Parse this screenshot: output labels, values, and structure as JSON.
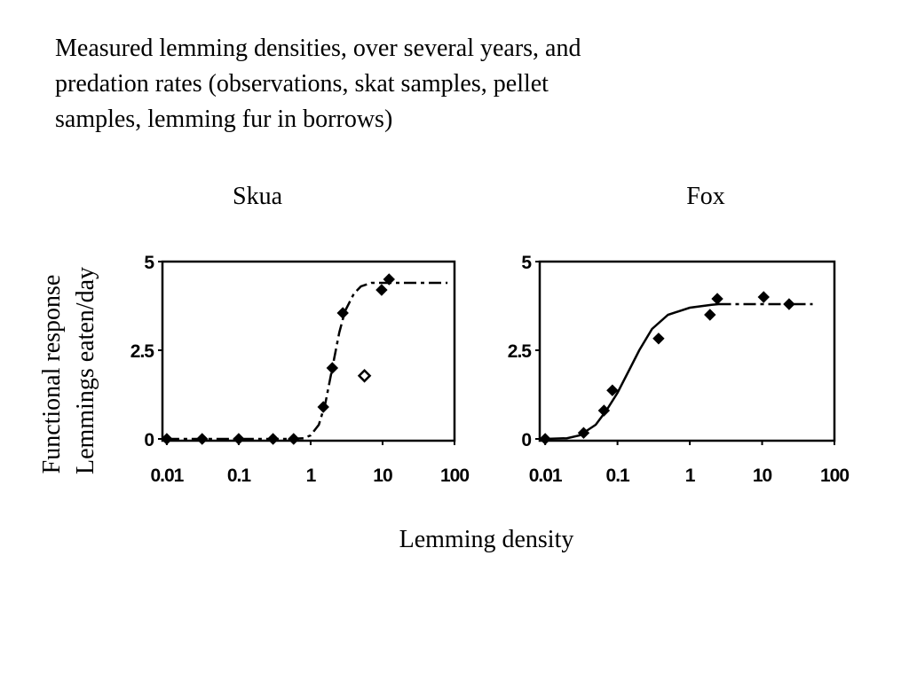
{
  "title_lines": [
    "Measured lemming densities, over several years, and",
    "predation rates (observations, skat samples, pellet",
    "samples, lemming fur in borrows)"
  ],
  "y_label_lines": [
    "Functional response",
    "Lemmings eaten/day"
  ],
  "x_label": "Lemming density",
  "chart_data": [
    {
      "type": "scatter",
      "title": "Skua",
      "xscale": "log",
      "xlim": [
        0.0087,
        100
      ],
      "xticks": [
        0.01,
        0.1,
        1,
        10,
        100
      ],
      "ylim": [
        -0.05,
        5
      ],
      "yticks": [
        0,
        2.5,
        5
      ],
      "grid": false,
      "series": [
        {
          "color": "#000000",
          "line": "dashed",
          "x": [
            0.01,
            0.1,
            0.5,
            0.8,
            1,
            1.3,
            1.6,
            2,
            2.5,
            3,
            4,
            5,
            7,
            10,
            20,
            80
          ],
          "values": [
            0,
            0,
            0,
            0.02,
            0.1,
            0.4,
            1,
            2,
            3,
            3.6,
            4.1,
            4.3,
            4.4,
            4.4,
            4.4,
            4.4
          ]
        },
        {
          "color": "#000000",
          "marker": "diamond-filled",
          "x": [
            0.01,
            0.031,
            0.1,
            0.3,
            0.58,
            1.5,
            2,
            2.8,
            9.7,
            12.3
          ],
          "values": [
            0,
            0,
            0,
            0,
            0,
            0.9,
            2,
            3.55,
            4.2,
            4.5
          ]
        },
        {
          "color": "#000000",
          "marker": "diamond-open",
          "x": [
            5.6
          ],
          "values": [
            1.78
          ]
        }
      ]
    },
    {
      "type": "scatter",
      "title": "Fox",
      "xscale": "log",
      "xlim": [
        0.0084,
        100
      ],
      "xticks": [
        0.01,
        0.1,
        1,
        10,
        100
      ],
      "ylim": [
        -0.05,
        5
      ],
      "yticks": [
        0,
        2.5,
        5
      ],
      "grid": false,
      "series": [
        {
          "color": "#000000",
          "line": "solid",
          "x": [
            0.01,
            0.02,
            0.03,
            0.05,
            0.07,
            0.1,
            0.15,
            0.2,
            0.3,
            0.5,
            1,
            2,
            2.5
          ],
          "values": [
            0,
            0.02,
            0.1,
            0.4,
            0.8,
            1.3,
            2,
            2.5,
            3.1,
            3.5,
            3.7,
            3.78,
            3.8
          ]
        },
        {
          "color": "#000000",
          "line": "dashed",
          "x": [
            2.5,
            10,
            50
          ],
          "values": [
            3.8,
            3.8,
            3.8
          ]
        },
        {
          "color": "#000000",
          "marker": "diamond-filled",
          "x": [
            0.01,
            0.034,
            0.065,
            0.085,
            0.37,
            1.9,
            2.4,
            10.5,
            23.6
          ],
          "values": [
            0,
            0.17,
            0.8,
            1.37,
            2.83,
            3.5,
            3.95,
            4.0,
            3.8
          ]
        }
      ]
    }
  ]
}
